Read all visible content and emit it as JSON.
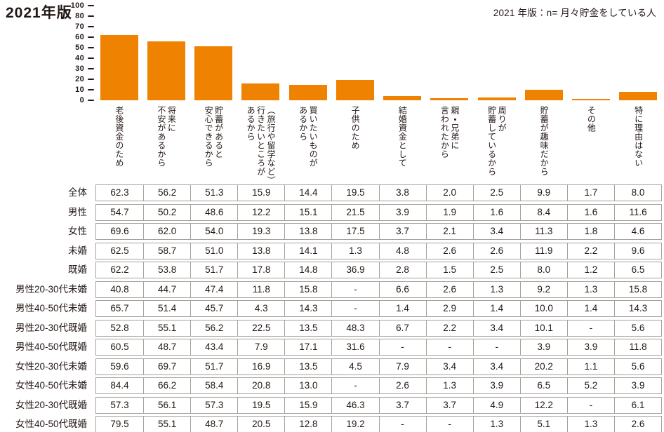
{
  "page": {
    "title": "2021年版",
    "note": "2021 年版：n= 月々貯金をしている人"
  },
  "colors": {
    "bar": "#ef8200",
    "text": "#231815",
    "table_border": "#a6a19b"
  },
  "chart_data": {
    "type": "bar",
    "title": "2021年版",
    "annotation": "2021 年版：n= 月々貯金をしている人",
    "xlabel": "",
    "ylabel": "",
    "ylim": [
      0,
      100
    ],
    "y_ticks": [
      100,
      80,
      70,
      60,
      50,
      40,
      30,
      20,
      10,
      0
    ],
    "grid": false,
    "legend": false,
    "bar_color": "#ef8200",
    "series_name": "全体",
    "categories": [
      "老後資金のため",
      "将来に不安があるから",
      "貯蓄があると安心できるから",
      "（旅行や留学など）行きたいところがあるから",
      "買いたいものがあるから",
      "子供のため",
      "結婚資金として",
      "親・兄弟に言われたから",
      "周りが貯蓄しているから",
      "貯蓄が趣味だから",
      "その他",
      "特に理由はない"
    ],
    "category_lines": [
      "老後資金のため",
      "将来に\n不安があるから",
      "貯蓄があると\n安心できるから",
      "（旅行や留学など）\n行きたいところが\nあるから",
      "買いたいものが\nあるから",
      "子供のため",
      "結婚資金として",
      "親・兄弟に\n言われたから",
      "周りが\n貯蓄しているから",
      "貯蓄が趣味だから",
      "その他",
      "特に理由はない"
    ],
    "values": [
      62.3,
      56.2,
      51.3,
      15.9,
      14.4,
      19.5,
      3.8,
      2.0,
      2.5,
      9.9,
      1.7,
      8.0
    ]
  },
  "table": {
    "rows": [
      {
        "label": "全体",
        "values": [
          "62.3",
          "56.2",
          "51.3",
          "15.9",
          "14.4",
          "19.5",
          "3.8",
          "2.0",
          "2.5",
          "9.9",
          "1.7",
          "8.0"
        ]
      },
      {
        "label": "男性",
        "values": [
          "54.7",
          "50.2",
          "48.6",
          "12.2",
          "15.1",
          "21.5",
          "3.9",
          "1.9",
          "1.6",
          "8.4",
          "1.6",
          "11.6"
        ]
      },
      {
        "label": "女性",
        "values": [
          "69.6",
          "62.0",
          "54.0",
          "19.3",
          "13.8",
          "17.5",
          "3.7",
          "2.1",
          "3.4",
          "11.3",
          "1.8",
          "4.6"
        ]
      },
      {
        "label": "未婚",
        "values": [
          "62.5",
          "58.7",
          "51.0",
          "13.8",
          "14.1",
          "1.3",
          "4.8",
          "2.6",
          "2.6",
          "11.9",
          "2.2",
          "9.6"
        ]
      },
      {
        "label": "既婚",
        "values": [
          "62.2",
          "53.8",
          "51.7",
          "17.8",
          "14.8",
          "36.9",
          "2.8",
          "1.5",
          "2.5",
          "8.0",
          "1.2",
          "6.5"
        ]
      },
      {
        "label": "男性20-30代未婚",
        "values": [
          "40.8",
          "44.7",
          "47.4",
          "11.8",
          "15.8",
          "-",
          "6.6",
          "2.6",
          "1.3",
          "9.2",
          "1.3",
          "15.8"
        ]
      },
      {
        "label": "男性40-50代未婚",
        "values": [
          "65.7",
          "51.4",
          "45.7",
          "4.3",
          "14.3",
          "-",
          "1.4",
          "2.9",
          "1.4",
          "10.0",
          "1.4",
          "14.3"
        ]
      },
      {
        "label": "男性20-30代既婚",
        "values": [
          "52.8",
          "55.1",
          "56.2",
          "22.5",
          "13.5",
          "48.3",
          "6.7",
          "2.2",
          "3.4",
          "10.1",
          "-",
          "5.6"
        ]
      },
      {
        "label": "男性40-50代既婚",
        "values": [
          "60.5",
          "48.7",
          "43.4",
          "7.9",
          "17.1",
          "31.6",
          "-",
          "-",
          "-",
          "3.9",
          "3.9",
          "11.8"
        ]
      },
      {
        "label": "女性20-30代未婚",
        "values": [
          "59.6",
          "69.7",
          "51.7",
          "16.9",
          "13.5",
          "4.5",
          "7.9",
          "3.4",
          "3.4",
          "20.2",
          "1.1",
          "5.6"
        ]
      },
      {
        "label": "女性40-50代未婚",
        "values": [
          "84.4",
          "66.2",
          "58.4",
          "20.8",
          "13.0",
          "-",
          "2.6",
          "1.3",
          "3.9",
          "6.5",
          "5.2",
          "3.9"
        ]
      },
      {
        "label": "女性20-30代既婚",
        "values": [
          "57.3",
          "56.1",
          "57.3",
          "19.5",
          "15.9",
          "46.3",
          "3.7",
          "3.7",
          "4.9",
          "12.2",
          "-",
          "6.1"
        ]
      },
      {
        "label": "女性40-50代既婚",
        "values": [
          "79.5",
          "55.1",
          "48.7",
          "20.5",
          "12.8",
          "19.2",
          "-",
          "-",
          "1.3",
          "5.1",
          "1.3",
          "2.6"
        ]
      }
    ]
  }
}
